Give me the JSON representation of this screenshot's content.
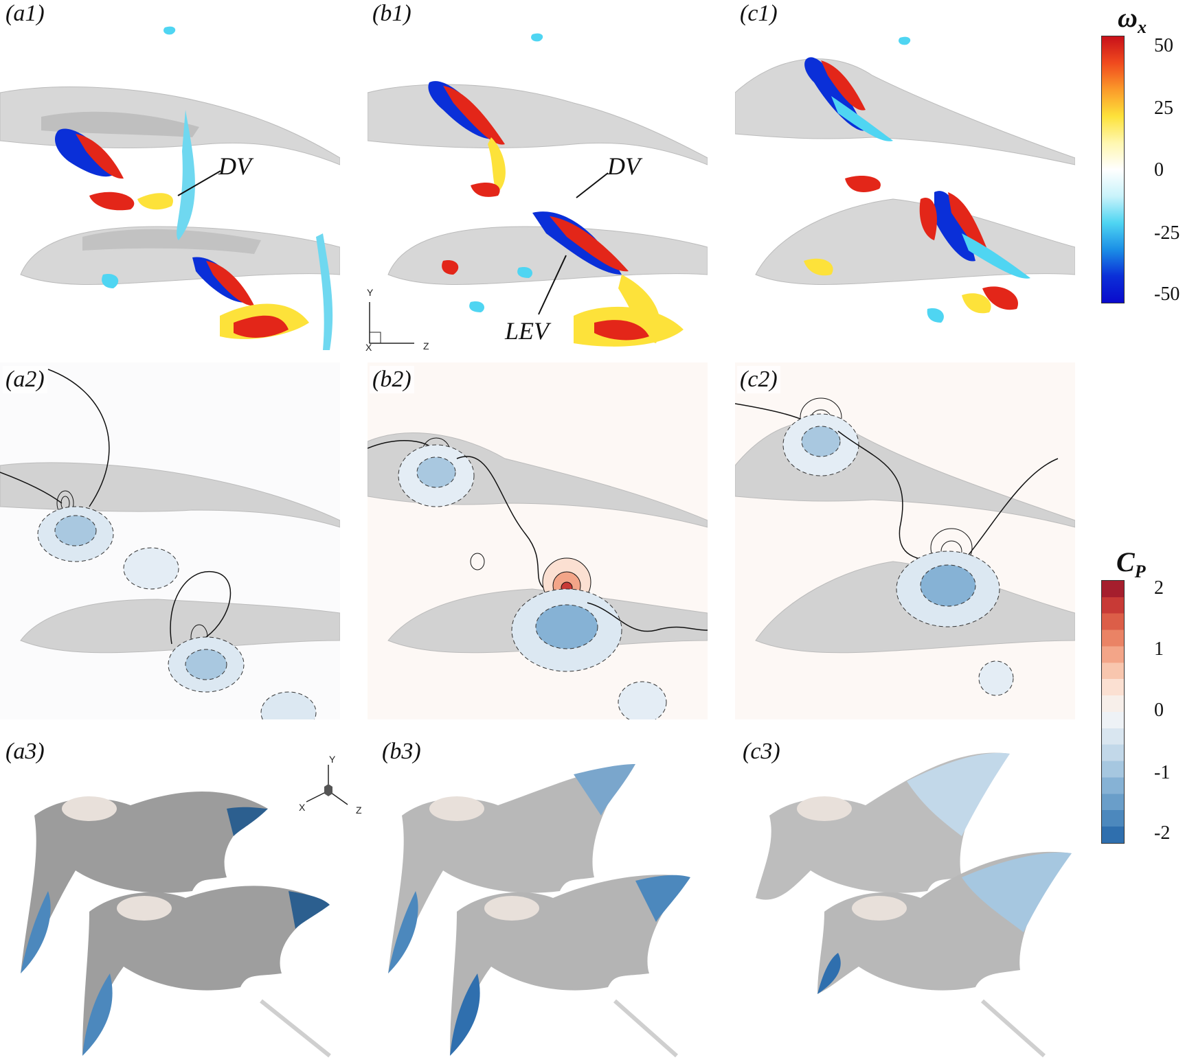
{
  "panels": [
    {
      "id": "a1",
      "label": "(a1)"
    },
    {
      "id": "b1",
      "label": "(b1)"
    },
    {
      "id": "c1",
      "label": "(c1)"
    },
    {
      "id": "a2",
      "label": "(a2)"
    },
    {
      "id": "b2",
      "label": "(b2)"
    },
    {
      "id": "c2",
      "label": "(c2)"
    },
    {
      "id": "a3",
      "label": "(a3)"
    },
    {
      "id": "b3",
      "label": "(b3)"
    },
    {
      "id": "c3",
      "label": "(c3)"
    }
  ],
  "annotations": {
    "a1_dv": "DV",
    "b1_dv": "DV",
    "b1_lev": "LEV"
  },
  "axes_2d": {
    "y": "Y",
    "x": "X",
    "z": "Z"
  },
  "axes_3d": {
    "y": "Y",
    "x": "X",
    "z": "Z"
  },
  "colorbar_vorticity": {
    "symbol": "ω",
    "subscript": "x",
    "ticks": [
      "50",
      "25",
      "0",
      "-25",
      "-50"
    ],
    "colors": [
      "#c8101a",
      "#f04a1e",
      "#fb9a2a",
      "#fde23a",
      "#fff7b0",
      "#ffffff",
      "#c9f3fb",
      "#4fd5f2",
      "#1b8fe6",
      "#0b2fd8",
      "#0a0acc"
    ]
  },
  "colorbar_pressure": {
    "symbol": "C",
    "subscript": "P",
    "ticks": [
      "2",
      "1",
      "0",
      "-1",
      "-2"
    ],
    "colors": [
      "#a51e2d",
      "#c83a36",
      "#dc5e48",
      "#ea8365",
      "#f3a588",
      "#f8c6ae",
      "#fbe0d2",
      "#f7efea",
      "#eef2f6",
      "#d9e6f0",
      "#c2d8e9",
      "#a6c7e0",
      "#86b2d5",
      "#6a9ec9",
      "#4c88bd",
      "#2f6fae"
    ]
  }
}
